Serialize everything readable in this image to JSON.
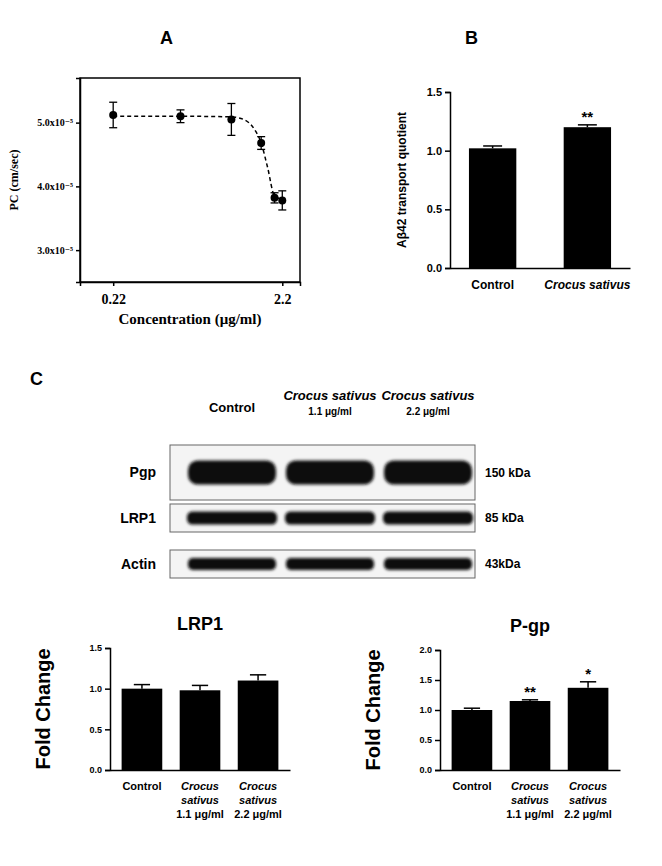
{
  "figure": {
    "panel_labels": [
      "A",
      "B",
      "C"
    ]
  },
  "blot": {
    "lanes": [
      "Control",
      "Crocus sativus 1.1 μg/ml",
      "Crocus sativus 2.2 μg/ml"
    ],
    "rows": [
      {
        "protein": "Pgp",
        "size": "150 kDa"
      },
      {
        "protein": "LRP1",
        "size": "85 kDa"
      },
      {
        "protein": "Actin",
        "size": "43kDa"
      }
    ]
  },
  "chart_data": [
    {
      "type": "scatter",
      "x_label": "Concentration (μg/ml)",
      "y_label": "PC (cm/sec)",
      "log": "x",
      "xlim": [
        0.14,
        2.8
      ],
      "xticks": [
        0.22,
        2.2
      ],
      "ylim": [
        2.5e-05,
        5.7e-05
      ],
      "yticks": [
        {
          "value": 3e-05,
          "label": "3.0x10⁻⁵"
        },
        {
          "value": 4e-05,
          "label": "4.0x10⁻⁵"
        },
        {
          "value": 5e-05,
          "label": "5.0x10⁻⁵"
        }
      ],
      "grid": false,
      "series": [
        {
          "type": "scatter",
          "marker": "circle",
          "color": "#000000",
          "x": [
            0.22,
            0.55,
            1.1,
            1.65,
            1.98,
            2.2
          ],
          "values": [
            5.12e-05,
            5.1e-05,
            5.05e-05,
            4.68e-05,
            3.82e-05,
            3.78e-05
          ],
          "errors": [
            2e-06,
            1e-06,
            2.5e-06,
            1e-06,
            8e-07,
            1.5e-06
          ]
        },
        {
          "type": "line",
          "line_style": "dashed",
          "color": "#000000",
          "x": [
            0.22,
            0.55,
            1.1,
            1.3,
            1.5,
            1.65,
            1.8,
            1.98,
            2.2
          ],
          "values": [
            5.1e-05,
            5.1e-05,
            5.09e-05,
            5.05e-05,
            4.9e-05,
            4.68e-05,
            4.3e-05,
            3.85e-05,
            3.8e-05
          ]
        }
      ]
    },
    {
      "type": "bar",
      "y_label": "Aβ42 transport quotient",
      "categories": [
        "Control",
        "Crocus sativus"
      ],
      "values": [
        1.02,
        1.2
      ],
      "errors": [
        0.02,
        0.02
      ],
      "significance": [
        null,
        "**"
      ],
      "color": "#000000",
      "ylim": [
        0,
        1.5
      ],
      "yticks": [
        {
          "value": 0,
          "label": "0.0"
        },
        0.5,
        {
          "value": 1,
          "label": "1.0"
        },
        1.5
      ],
      "grid": false
    },
    {
      "type": "bar",
      "title": "LRP1",
      "y_label": "Fold Change",
      "categories": [
        "Control",
        "Crocus sativus 1.1 μg/ml",
        "Crocus sativus 2.2 μg/ml"
      ],
      "values": [
        1.0,
        0.98,
        1.1
      ],
      "errors": [
        0.05,
        0.06,
        0.07
      ],
      "significance": [
        null,
        null,
        null
      ],
      "color": "#000000",
      "ylim": [
        0,
        1.5
      ],
      "yticks": [
        {
          "value": 0,
          "label": "0.0"
        },
        0.5,
        {
          "value": 1,
          "label": "1.0"
        },
        1.5
      ],
      "grid": false
    },
    {
      "type": "bar",
      "title": "P-gp",
      "y_label": "Fold Change",
      "categories": [
        "Control",
        "Crocus sativus 1.1 μg/ml",
        "Crocus sativus 2.2 μg/ml"
      ],
      "values": [
        1.0,
        1.15,
        1.37
      ],
      "errors": [
        0.03,
        0.02,
        0.1
      ],
      "significance": [
        null,
        "**",
        "*"
      ],
      "color": "#000000",
      "ylim": [
        0,
        2.0
      ],
      "yticks": [
        {
          "value": 0,
          "label": "0.0"
        },
        0.5,
        {
          "value": 1,
          "label": "1.0"
        },
        1.5,
        {
          "value": 2,
          "label": "2.0"
        }
      ],
      "grid": false
    }
  ]
}
